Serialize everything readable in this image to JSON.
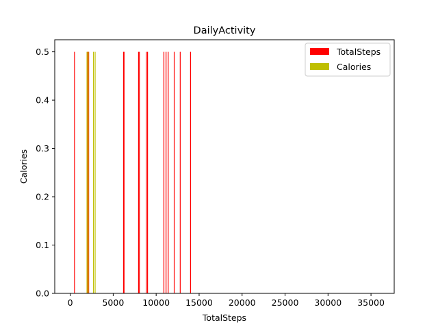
{
  "chart_data": {
    "type": "bar",
    "title": "DailyActivity",
    "xlabel": "TotalSteps",
    "ylabel": "Calories",
    "xlim": [
      -1800,
      37700
    ],
    "ylim": [
      0,
      0.525
    ],
    "xticks": [
      0,
      5000,
      10000,
      15000,
      20000,
      25000,
      30000,
      35000
    ],
    "yticks": [
      0.0,
      0.1,
      0.2,
      0.3,
      0.4,
      0.5
    ],
    "xtick_labels": [
      "0",
      "5000",
      "10000",
      "15000",
      "20000",
      "25000",
      "30000",
      "35000"
    ],
    "ytick_labels": [
      "0.0",
      "0.1",
      "0.2",
      "0.3",
      "0.4",
      "0.5"
    ],
    "grid": false,
    "legend_position": "top-right",
    "series": [
      {
        "name": "TotalSteps",
        "color": "#ff0000",
        "x": [
          500,
          2000,
          2150,
          6200,
          6270,
          7950,
          8050,
          8850,
          9000,
          10900,
          11150,
          11400,
          12100,
          12800,
          14000
        ],
        "values": [
          0.5,
          0.5,
          0.5,
          0.5,
          0.5,
          0.5,
          0.5,
          0.5,
          0.5,
          0.5,
          0.5,
          0.5,
          0.5,
          0.5,
          0.5
        ]
      },
      {
        "name": "Calories",
        "color": "#bfbf00",
        "x": [
          1950,
          2100,
          2700,
          2900
        ],
        "values": [
          0.5,
          0.5,
          0.5,
          0.5
        ]
      }
    ]
  }
}
